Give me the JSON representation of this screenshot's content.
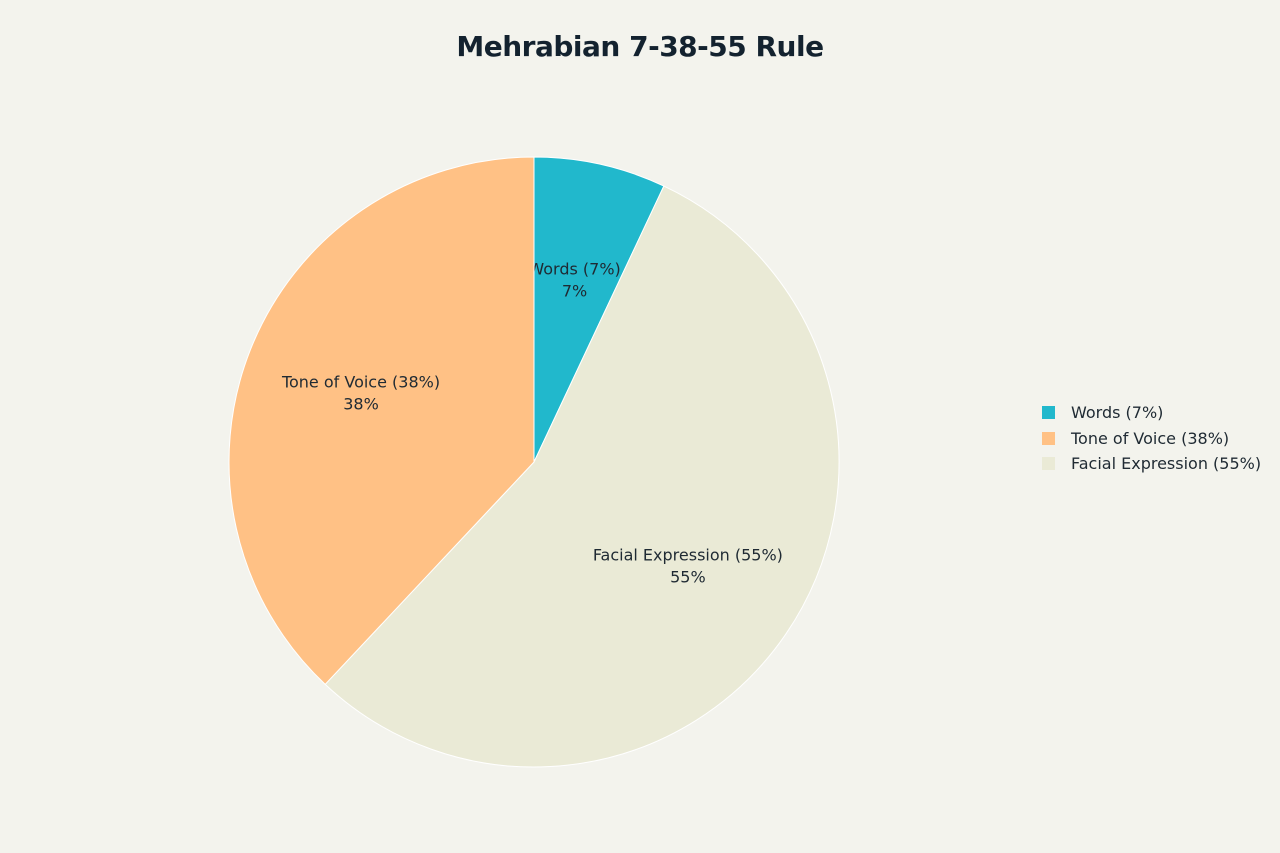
{
  "chart_data": {
    "type": "pie",
    "title": "Mehrabian 7-38-55 Rule",
    "slices": [
      {
        "label": "Words (7%)",
        "value": 7,
        "value_label": "7%",
        "color": "#21b8cc"
      },
      {
        "label": "Facial Expression (55%)",
        "value": 55,
        "value_label": "55%",
        "color": "#eaead6"
      },
      {
        "label": "Tone of Voice (38%)",
        "value": 38,
        "value_label": "38%",
        "color": "#ffc185"
      }
    ],
    "legend": {
      "placement": "right",
      "entries": [
        {
          "label": "Words (7%)",
          "color": "#21b8cc"
        },
        {
          "label": "Tone of Voice (38%)",
          "color": "#ffc185"
        },
        {
          "label": "Facial Expression (55%)",
          "color": "#eaead6"
        }
      ]
    },
    "start_angle": "12 o'clock",
    "direction": "clockwise"
  }
}
